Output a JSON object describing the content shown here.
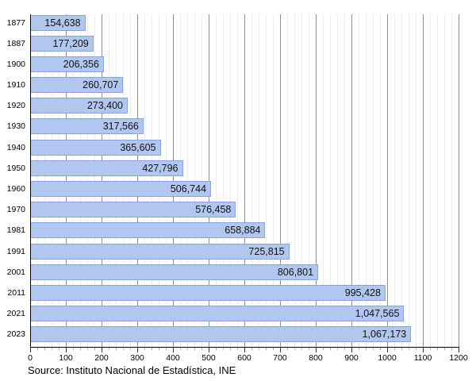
{
  "chart_data": {
    "type": "bar",
    "orientation": "horizontal",
    "title": "",
    "xlabel": "",
    "ylabel": "",
    "categories": [
      "1877",
      "1887",
      "1900",
      "1910",
      "1920",
      "1930",
      "1940",
      "1950",
      "1960",
      "1970",
      "1981",
      "1991",
      "2001",
      "2011",
      "2021",
      "2023"
    ],
    "values": [
      154638,
      177209,
      206356,
      260707,
      273400,
      317566,
      365605,
      427796,
      506744,
      576458,
      658884,
      725815,
      806801,
      995428,
      1047565,
      1067173
    ],
    "value_labels": [
      "154,638",
      "177,209",
      "206,356",
      "260,707",
      "273,400",
      "317,566",
      "365,605",
      "427,796",
      "506,744",
      "576,458",
      "658,884",
      "725,815",
      "806,801",
      "995,428",
      "1,047,565",
      "1,067,173"
    ],
    "axis": {
      "xlim": [
        0,
        1200000
      ],
      "x_tick_labels": [
        "0",
        "100",
        "200",
        "300",
        "400",
        "500",
        "600",
        "700",
        "800",
        "900",
        "1000",
        "1100",
        "1200"
      ],
      "x_tick_scale": "thousands",
      "minor_tick_step": 20000,
      "major_tick_step": 100000,
      "grid": "on",
      "legend": "none"
    },
    "colors": {
      "bar_fill": "#b1c7f0",
      "bar_border": "#89a4dc",
      "minor_grid": "#ececec",
      "major_grid": "#919191",
      "axis_line": "#000000",
      "value_text": "#111111"
    },
    "source": "Source: Instituto Nacional de Estadística, INE"
  }
}
